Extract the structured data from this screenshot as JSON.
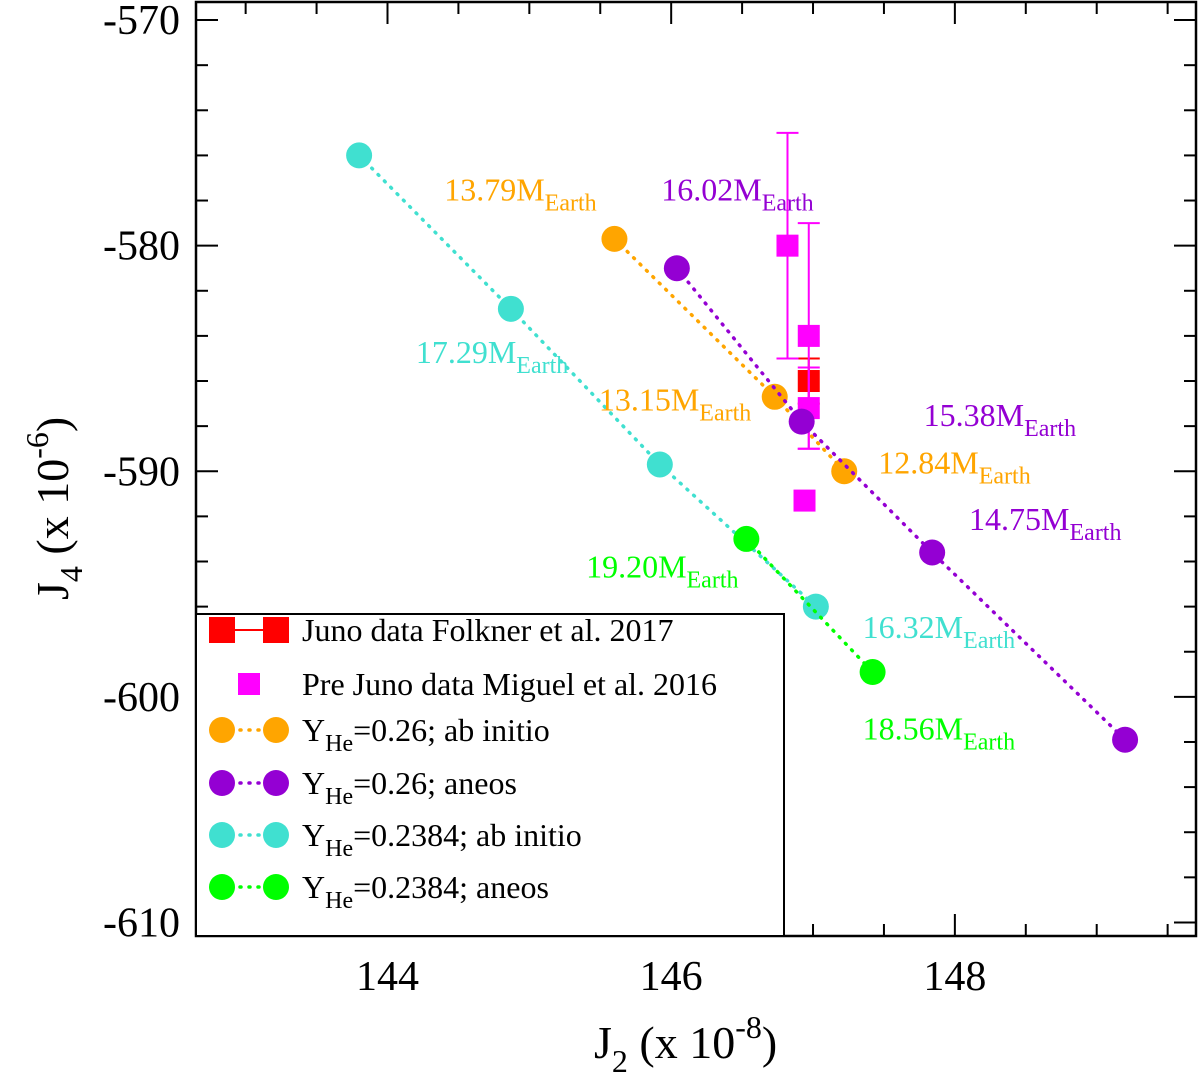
{
  "chart_data": {
    "type": "scatter",
    "xlabel": {
      "main": "J",
      "sub": "2",
      "rest": " (x 10",
      "sup": "-8",
      "close": ")"
    },
    "ylabel": {
      "main": "J",
      "sub": "4",
      "rest": " (x 10",
      "sup": "-6",
      "close": ")"
    },
    "xlim": [
      142.65,
      149.7
    ],
    "ylim": [
      -610.6,
      -569.2
    ],
    "xticks": [
      144,
      146,
      148
    ],
    "yticks": [
      -570,
      -580,
      -590,
      -600,
      -610
    ],
    "xtick_labels": [
      "144",
      "146",
      "148"
    ],
    "ytick_labels": [
      "-570",
      "-580",
      "-590",
      "-600",
      "-610"
    ],
    "series": [
      {
        "name": "Juno data Folkner et al. 2017",
        "color": "#ff0000",
        "marker": "square",
        "line": "solid",
        "points": [
          {
            "x": 146.97,
            "y": -586.0,
            "err": 1.0
          }
        ]
      },
      {
        "name": "Pre Juno data Miguel et al. 2016",
        "color": "#ff00ff",
        "marker": "square",
        "line": "none",
        "points": [
          {
            "x": 146.82,
            "y": -580.0,
            "err": 5.0
          },
          {
            "x": 146.97,
            "y": -584.0,
            "err": 5.0
          },
          {
            "x": 146.97,
            "y": -587.2,
            "err": 1.8
          },
          {
            "x": 146.94,
            "y": -591.3,
            "err": 0
          }
        ]
      },
      {
        "name": "Y_He=0.26; ab initio",
        "label_main": "Y",
        "label_sub": "He",
        "label_rest": "=0.26; ab initio",
        "color": "#ffa500",
        "marker": "circle",
        "line": "dotted",
        "points": [
          {
            "x": 145.6,
            "y": -579.7
          },
          {
            "x": 146.73,
            "y": -586.7
          },
          {
            "x": 147.22,
            "y": -590.0
          }
        ]
      },
      {
        "name": "Y_He=0.26; aneos",
        "label_main": "Y",
        "label_sub": "He",
        "label_rest": "=0.26; aneos",
        "color": "#9400d3",
        "marker": "circle",
        "line": "dotted",
        "points": [
          {
            "x": 146.04,
            "y": -581.0
          },
          {
            "x": 146.92,
            "y": -587.8
          },
          {
            "x": 147.84,
            "y": -593.6
          },
          {
            "x": 149.2,
            "y": -601.9
          }
        ]
      },
      {
        "name": "Y_He=0.2384; ab initio",
        "label_main": "Y",
        "label_sub": "He",
        "label_rest": "=0.2384; ab initio",
        "color": "#40e0d0",
        "marker": "circle",
        "line": "dotted",
        "points": [
          {
            "x": 143.8,
            "y": -576.0
          },
          {
            "x": 144.87,
            "y": -582.8
          },
          {
            "x": 145.92,
            "y": -589.7
          },
          {
            "x": 147.02,
            "y": -596.0
          }
        ]
      },
      {
        "name": "Y_He=0.2384; aneos",
        "label_main": "Y",
        "label_sub": "He",
        "label_rest": "=0.2384; aneos",
        "color": "#00ff00",
        "marker": "circle",
        "line": "dotted",
        "points": [
          {
            "x": 146.53,
            "y": -593.0
          },
          {
            "x": 147.42,
            "y": -598.9
          }
        ]
      }
    ],
    "annotations": [
      {
        "main": "13.79M",
        "sub": "Earth",
        "color": "#ffa500",
        "x": 144.4,
        "y": -578.0
      },
      {
        "main": "16.02M",
        "sub": "Earth",
        "color": "#9400d3",
        "x": 145.93,
        "y": -578.0
      },
      {
        "main": "17.29M",
        "sub": "Earth",
        "color": "#40e0d0",
        "x": 144.2,
        "y": -585.2
      },
      {
        "main": "13.15M",
        "sub": "Earth",
        "color": "#ffa500",
        "x": 145.49,
        "y": -587.3
      },
      {
        "main": "15.38M",
        "sub": "Earth",
        "color": "#9400d3",
        "x": 147.78,
        "y": -588.0
      },
      {
        "main": "12.84M",
        "sub": "Earth",
        "color": "#ffa500",
        "x": 147.46,
        "y": -590.1
      },
      {
        "main": "14.75M",
        "sub": "Earth",
        "color": "#9400d3",
        "x": 148.1,
        "y": -592.6
      },
      {
        "main": "19.20M",
        "sub": "Earth",
        "color": "#00ff00",
        "x": 145.4,
        "y": -594.7
      },
      {
        "main": "16.32M",
        "sub": "Earth",
        "color": "#40e0d0",
        "x": 147.35,
        "y": -597.4
      },
      {
        "main": "18.56M",
        "sub": "Earth",
        "color": "#00ff00",
        "x": 147.35,
        "y": -601.9
      }
    ],
    "legend": "bottom-left"
  }
}
